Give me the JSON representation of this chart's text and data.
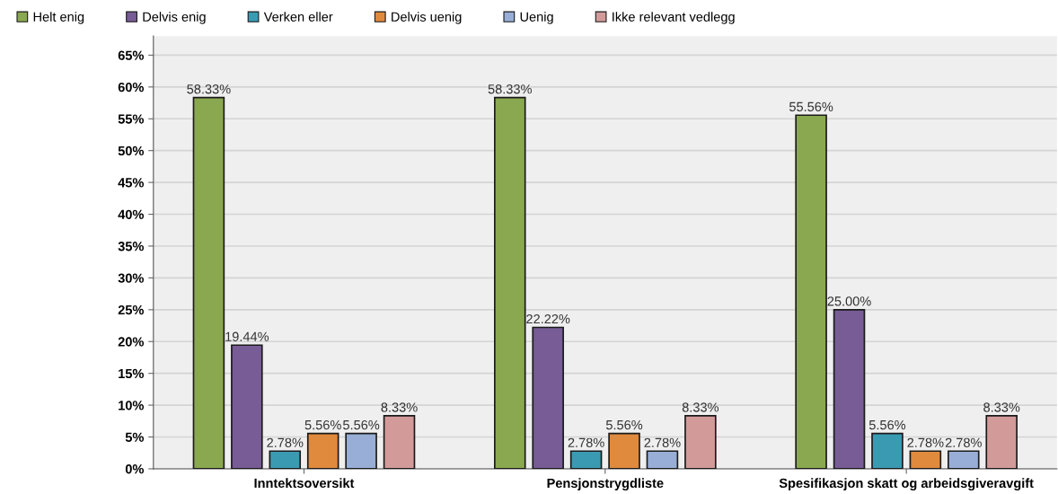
{
  "chart_data": {
    "type": "bar",
    "categories": [
      "Inntektsoversikt",
      "Pensjonstrygdliste",
      "Spesifikasjon skatt og arbeidsgiveravgift"
    ],
    "series": [
      {
        "name": "Helt enig",
        "color": "#8aa84f",
        "values": [
          58.33,
          58.33,
          55.56
        ],
        "value_labels": [
          "58.33%",
          "58.33%",
          "55.56%"
        ]
      },
      {
        "name": "Delvis enig",
        "color": "#775c96",
        "values": [
          19.44,
          22.22,
          25.0
        ],
        "value_labels": [
          "19.44%",
          "22.22%",
          "25.00%"
        ]
      },
      {
        "name": "Verken eller",
        "color": "#3a9ab2",
        "values": [
          2.78,
          2.78,
          5.56
        ],
        "value_labels": [
          "2.78%",
          "2.78%",
          "5.56%"
        ]
      },
      {
        "name": "Delvis uenig",
        "color": "#e08a3e",
        "values": [
          5.56,
          5.56,
          2.78
        ],
        "value_labels": [
          "5.56%",
          "5.56%",
          "2.78%"
        ]
      },
      {
        "name": "Uenig",
        "color": "#98aed6",
        "values": [
          5.56,
          2.78,
          2.78
        ],
        "value_labels": [
          "5.56%",
          "2.78%",
          "2.78%"
        ]
      },
      {
        "name": "Ikke relevant vedlegg",
        "color": "#d39a9a",
        "values": [
          8.33,
          8.33,
          8.33
        ],
        "value_labels": [
          "8.33%",
          "8.33%",
          "8.33%"
        ]
      }
    ],
    "ylim": [
      0,
      68
    ],
    "yticks": [
      {
        "value": 0,
        "label": "0%"
      },
      {
        "value": 5,
        "label": "5%"
      },
      {
        "value": 10,
        "label": "10%"
      },
      {
        "value": 15,
        "label": "15%"
      },
      {
        "value": 20,
        "label": "20%"
      },
      {
        "value": 25,
        "label": "25%"
      },
      {
        "value": 30,
        "label": "30%"
      },
      {
        "value": 35,
        "label": "35%"
      },
      {
        "value": 40,
        "label": "40%"
      },
      {
        "value": 45,
        "label": "45%"
      },
      {
        "value": 50,
        "label": "50%"
      },
      {
        "value": 55,
        "label": "55%"
      },
      {
        "value": 60,
        "label": "60%"
      },
      {
        "value": 65,
        "label": "65%"
      }
    ],
    "grid": "y",
    "legend": "top left"
  }
}
